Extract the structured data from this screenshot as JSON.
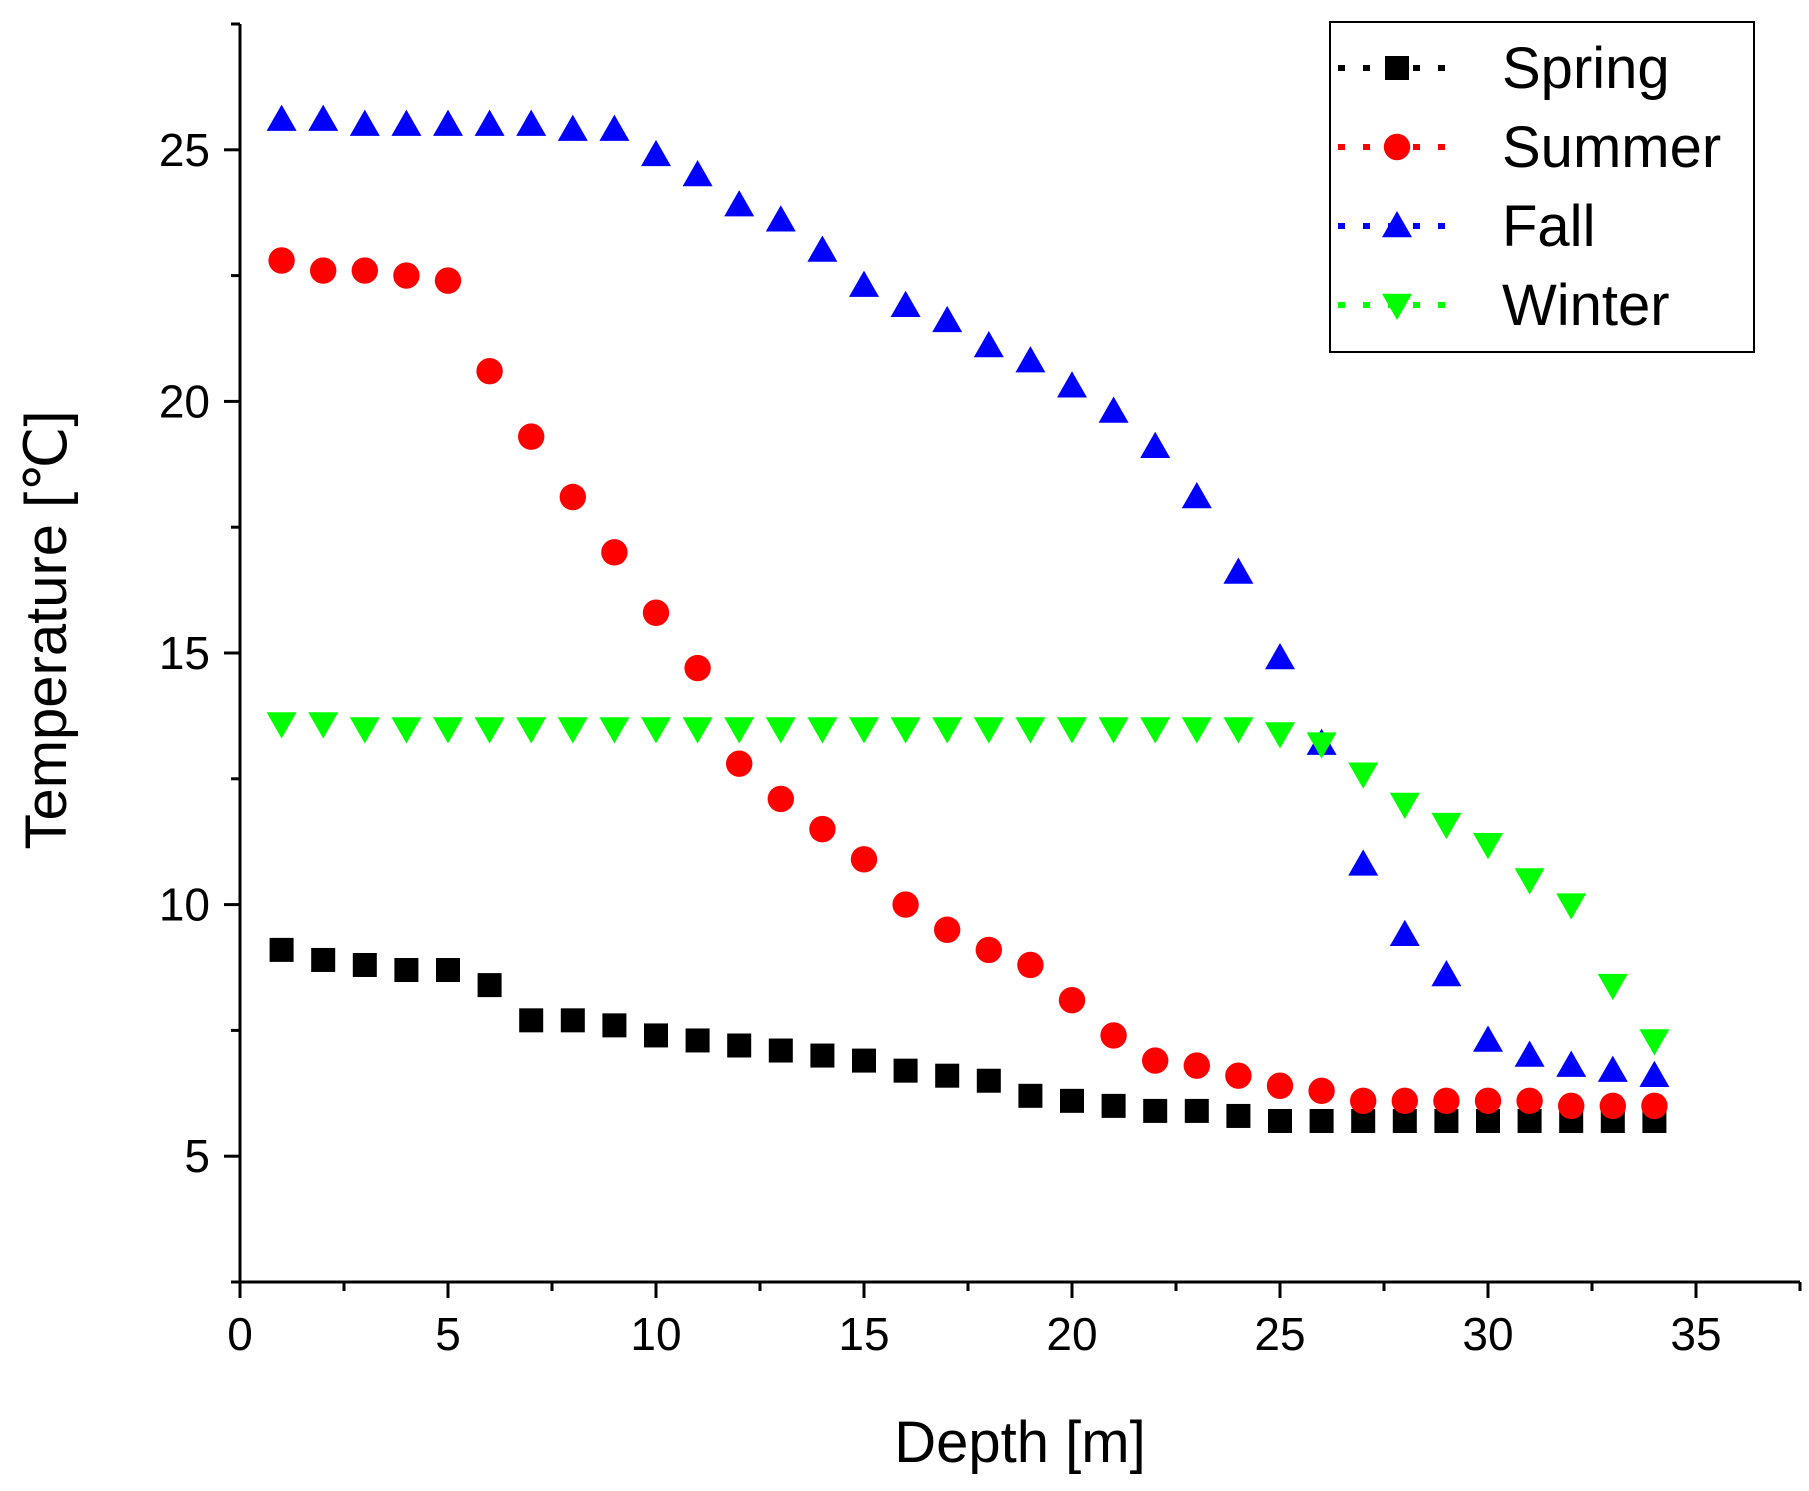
{
  "chart_data": {
    "type": "scatter",
    "title": "",
    "xlabel": "Depth [m]",
    "ylabel": "Temperature [℃]",
    "xlim": [
      0,
      37.5
    ],
    "ylim": [
      2.5,
      27.5
    ],
    "xticks": [
      0,
      5,
      10,
      15,
      20,
      25,
      30,
      35
    ],
    "yticks": [
      5,
      10,
      15,
      20,
      25
    ],
    "legend_position": "top-right",
    "x": [
      1,
      2,
      3,
      4,
      5,
      6,
      7,
      8,
      9,
      10,
      11,
      12,
      13,
      14,
      15,
      16,
      17,
      18,
      19,
      20,
      21,
      22,
      23,
      24,
      25,
      26,
      27,
      28,
      29,
      30,
      31,
      32,
      33,
      34
    ],
    "series": [
      {
        "name": "Spring",
        "color": "#000000",
        "marker": "square",
        "values": [
          9.1,
          8.9,
          8.8,
          8.7,
          8.7,
          8.4,
          7.7,
          7.7,
          7.6,
          7.4,
          7.3,
          7.2,
          7.1,
          7.0,
          6.9,
          6.7,
          6.6,
          6.5,
          6.2,
          6.1,
          6.0,
          5.9,
          5.9,
          5.8,
          5.7,
          5.7,
          5.7,
          5.7,
          5.7,
          5.7,
          5.7,
          5.7,
          5.7,
          5.7
        ]
      },
      {
        "name": "Summer",
        "color": "#ff0000",
        "marker": "circle",
        "values": [
          22.8,
          22.6,
          22.6,
          22.5,
          22.4,
          20.6,
          19.3,
          18.1,
          17.0,
          15.8,
          14.7,
          12.8,
          12.1,
          11.5,
          10.9,
          10.0,
          9.5,
          9.1,
          8.8,
          8.1,
          7.4,
          6.9,
          6.8,
          6.6,
          6.4,
          6.3,
          6.1,
          6.1,
          6.1,
          6.1,
          6.1,
          6.0,
          6.0,
          6.0
        ]
      },
      {
        "name": "Fall",
        "color": "#0000ff",
        "marker": "triangle-up",
        "values": [
          25.6,
          25.6,
          25.5,
          25.5,
          25.5,
          25.5,
          25.5,
          25.4,
          25.4,
          24.9,
          24.5,
          23.9,
          23.6,
          23.0,
          22.3,
          21.9,
          21.6,
          21.1,
          20.8,
          20.3,
          19.8,
          19.1,
          18.1,
          16.6,
          14.9,
          13.2,
          10.8,
          9.4,
          8.6,
          7.3,
          7.0,
          6.8,
          6.7,
          6.6
        ]
      },
      {
        "name": "Winter",
        "color": "#00ff00",
        "marker": "triangle-down",
        "values": [
          13.6,
          13.6,
          13.5,
          13.5,
          13.5,
          13.5,
          13.5,
          13.5,
          13.5,
          13.5,
          13.5,
          13.5,
          13.5,
          13.5,
          13.5,
          13.5,
          13.5,
          13.5,
          13.5,
          13.5,
          13.5,
          13.5,
          13.5,
          13.5,
          13.4,
          13.2,
          12.6,
          12.0,
          11.6,
          11.2,
          10.5,
          10.0,
          8.4,
          7.3
        ]
      }
    ]
  }
}
